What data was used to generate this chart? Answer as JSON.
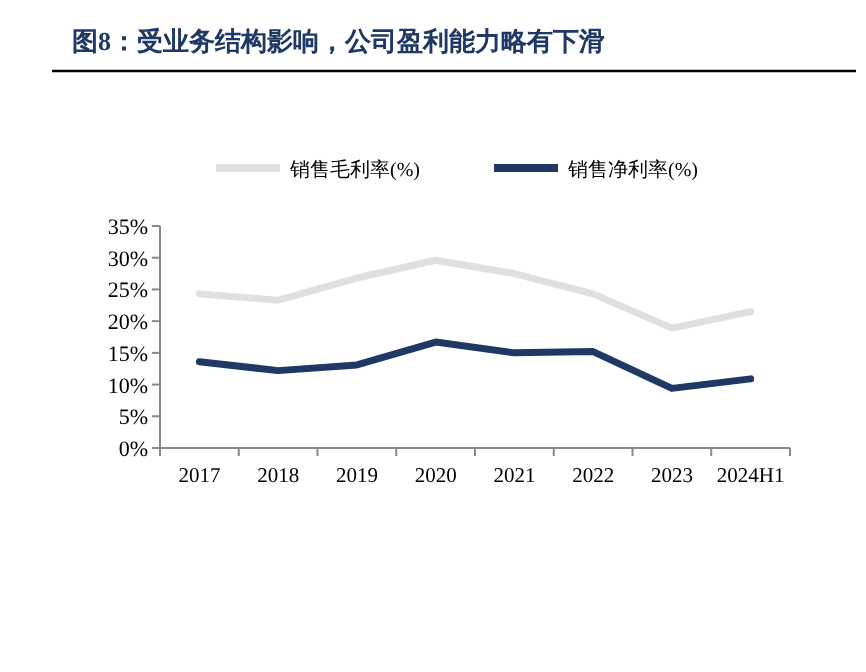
{
  "chart_data": {
    "type": "line",
    "title": "图8：受业务结构影响，公司盈利能力略有下滑",
    "categories": [
      "2017",
      "2018",
      "2019",
      "2020",
      "2021",
      "2022",
      "2023",
      "2024H1"
    ],
    "series": [
      {
        "name": "销售毛利率(%)",
        "color": "#e0e0e0",
        "values": [
          24.3,
          23.3,
          26.8,
          29.6,
          27.5,
          24.3,
          18.9,
          21.5
        ]
      },
      {
        "name": "销售净利率(%)",
        "color": "#1f3864",
        "values": [
          13.6,
          12.2,
          13.1,
          16.7,
          15.0,
          15.2,
          9.4,
          10.9
        ]
      }
    ],
    "ylim": [
      0,
      35
    ],
    "yticks": [
      {
        "value": 0,
        "label": "0%"
      },
      {
        "value": 5,
        "label": "5%"
      },
      {
        "value": 10,
        "label": "10%"
      },
      {
        "value": 15,
        "label": "15%"
      },
      {
        "value": 20,
        "label": "20%"
      },
      {
        "value": 25,
        "label": "25%"
      },
      {
        "value": 30,
        "label": "30%"
      },
      {
        "value": 35,
        "label": "35%"
      }
    ],
    "grid": false,
    "legend": "top",
    "marker": "none",
    "line_style": "solid"
  }
}
